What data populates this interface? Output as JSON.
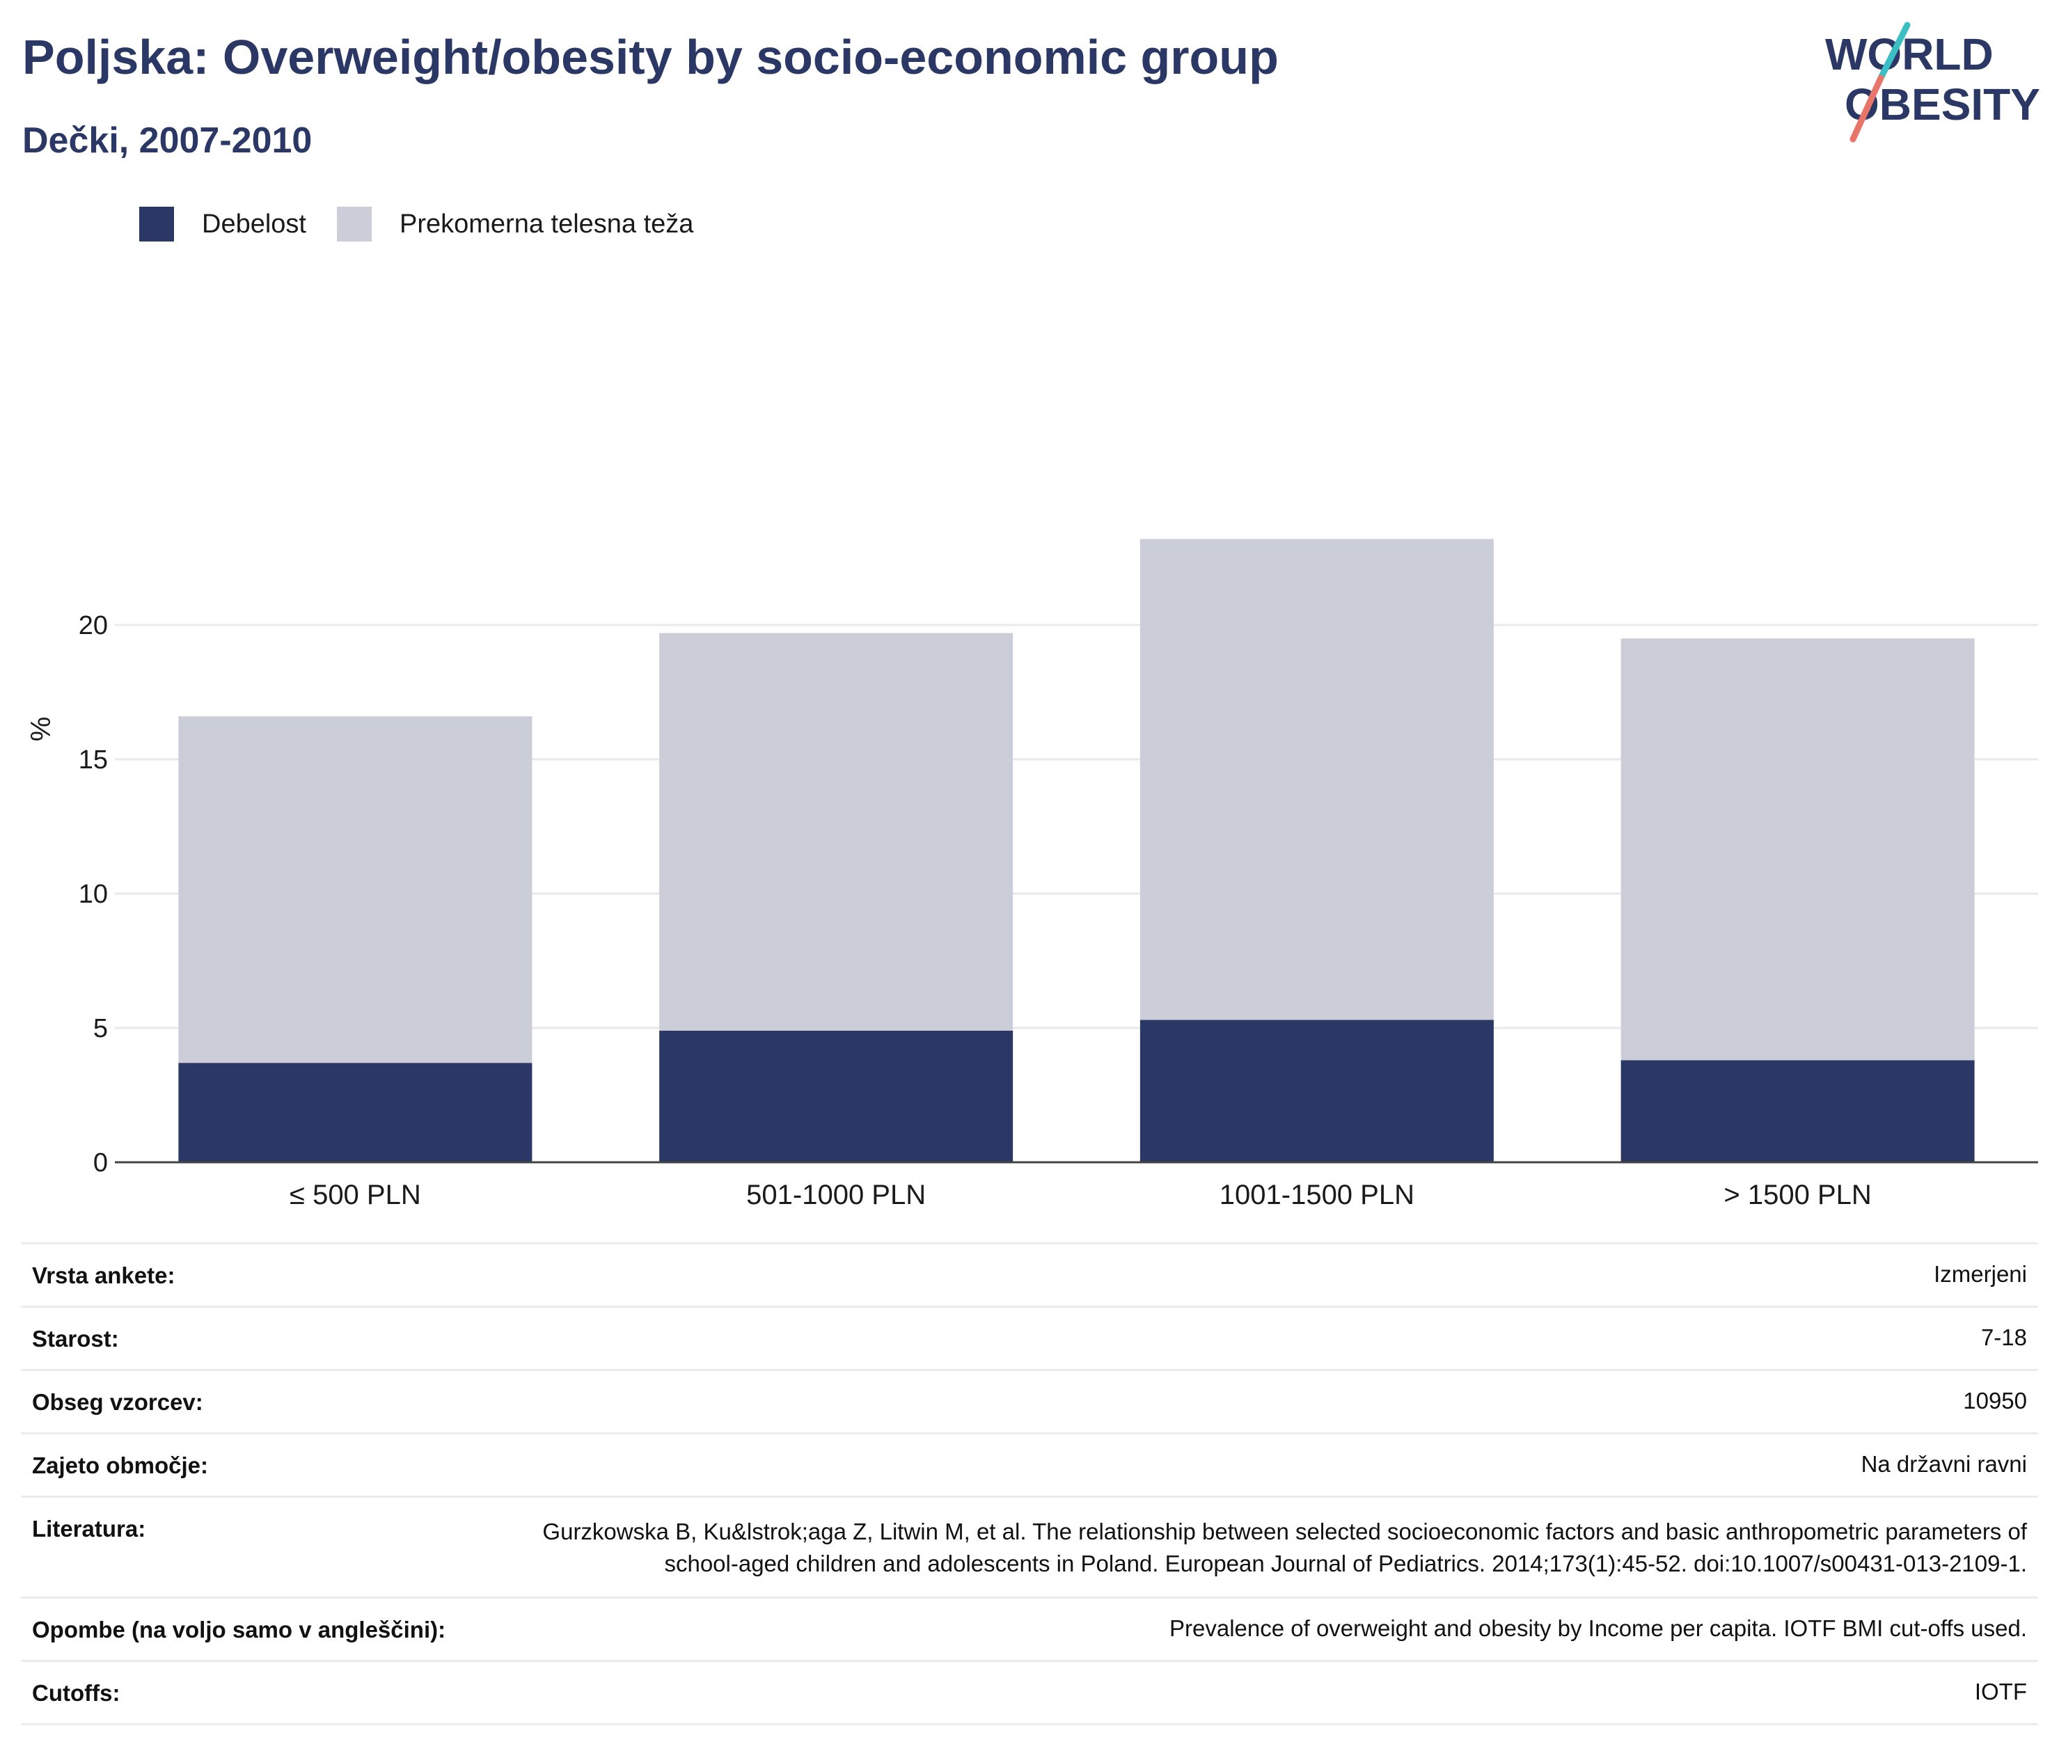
{
  "header": {
    "title": "Poljska: Overweight/obesity by socio-economic group",
    "subtitle": "Dečki, 2007-2010"
  },
  "logo": {
    "line1": "WORLD",
    "line2": "OBESITY",
    "colors": {
      "text": "#2b3764",
      "slash_teal": "#3cbfc4",
      "slash_coral": "#e8756a"
    }
  },
  "legend": [
    {
      "label": "Debelost",
      "color": "#2b3764"
    },
    {
      "label": "Prekomerna telesna teža",
      "color": "#cbcdd9"
    }
  ],
  "chart_data": {
    "type": "bar",
    "stacked": true,
    "categories": [
      "≤ 500 PLN",
      "501-1000 PLN",
      "1001-1500 PLN",
      "> 1500 PLN"
    ],
    "series": [
      {
        "name": "Debelost",
        "color": "#2b3764",
        "values": [
          3.7,
          4.9,
          5.3,
          3.8
        ]
      },
      {
        "name": "Prekomerna telesna teža",
        "color": "#cbcdd9",
        "values": [
          12.9,
          14.8,
          17.9,
          15.7
        ]
      }
    ],
    "ylabel": "%",
    "ylim": [
      0,
      25
    ],
    "yticks": [
      0,
      5,
      10,
      15,
      20
    ],
    "grid": true,
    "legend_position": "top-left"
  },
  "meta": [
    {
      "label": "Vrsta ankete:",
      "value": "Izmerjeni"
    },
    {
      "label": "Starost:",
      "value": "7-18"
    },
    {
      "label": "Obseg vzorcev:",
      "value": "10950"
    },
    {
      "label": "Zajeto območje:",
      "value": "Na državni ravni"
    },
    {
      "label": "Literatura:",
      "value": "Gurzkowska B, Ku&lstrok;aga Z, Litwin M, et al. The relationship between selected socioeconomic factors and basic anthropometric parameters of school-aged children and adolescents in Poland. European Journal of Pediatrics. 2014;173(1):45-52. doi:10.1007/s00431-013-2109-1."
    },
    {
      "label": "Opombe (na voljo samo v angleščini):",
      "value": "Prevalence of overweight and obesity by Income per capita. IOTF BMI cut-offs used."
    },
    {
      "label": "Cutoffs:",
      "value": "IOTF"
    }
  ]
}
